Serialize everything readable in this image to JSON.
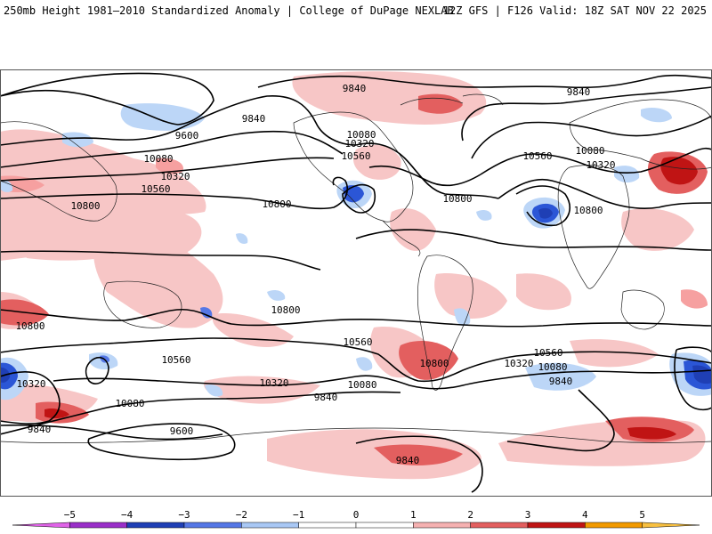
{
  "header": {
    "left_title": "250mb Height 1981–2010 Standardized Anomaly | College of DuPage NEXLAB",
    "right_title": "12Z GFS | F126 Valid: 18Z SAT NOV 22 2025"
  },
  "contour_labels": {
    "c1": "9840",
    "c2": "9840",
    "c3": "9840",
    "c4": "9600",
    "c5": "10080",
    "c6": "10320",
    "c7": "10560",
    "c8": "10800",
    "c9": "10800",
    "c10": "10080",
    "c11": "10320",
    "c12": "10560",
    "c13": "10800",
    "c14": "10560",
    "c15": "10080",
    "c16": "10320",
    "c17": "10800",
    "c18": "10800",
    "c19": "10800",
    "c20": "10560",
    "c21": "10320",
    "c22": "10080",
    "c23": "9840",
    "c24": "10080",
    "c25": "9840",
    "c26": "9600",
    "c27": "10320",
    "c28": "10560",
    "c29": "10800",
    "c30": "10560",
    "c31": "10320",
    "c32": "10080",
    "c33": "9840",
    "c34": "9840"
  },
  "colorbar": {
    "ticks": [
      "−5",
      "−4",
      "−3",
      "−2",
      "−1",
      "0",
      "1",
      "2",
      "3",
      "4",
      "5"
    ],
    "colors": [
      "#e063e8",
      "#9a2fc9",
      "#1f3fb5",
      "#5577e6",
      "#a9c8f5",
      "#ffffff",
      "#ffffff",
      "#f6b1b1",
      "#e35f5f",
      "#c01414",
      "#f29a00",
      "#f8c040"
    ]
  }
}
